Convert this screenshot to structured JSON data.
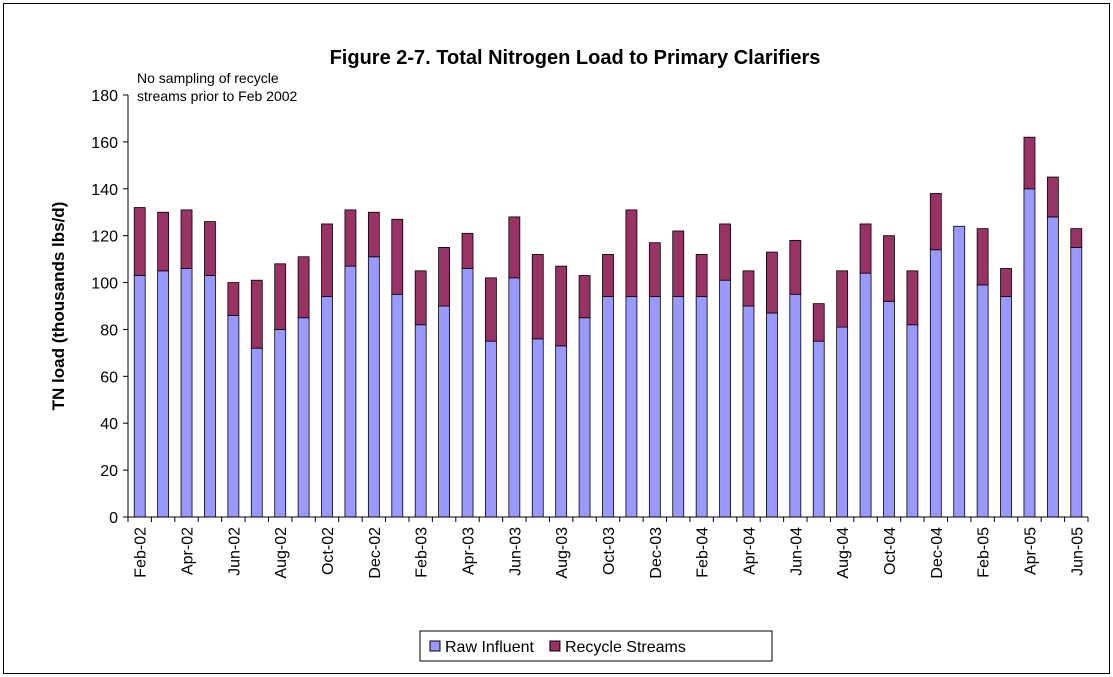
{
  "chart_data": {
    "type": "stacked-bar",
    "title": "Figure 2-7.  Total Nitrogen Load to Primary Clarifiers",
    "annotation": [
      "No sampling of recycle",
      "streams prior to Feb 2002"
    ],
    "y_label": "TN load (thousands lbs/d)",
    "categories": [
      "Feb-02",
      null,
      "Apr-02",
      null,
      "Jun-02",
      null,
      "Aug-02",
      null,
      "Oct-02",
      null,
      "Dec-02",
      null,
      "Feb-03",
      null,
      "Apr-03",
      null,
      "Jun-03",
      null,
      "Aug-03",
      null,
      "Oct-03",
      null,
      "Dec-03",
      null,
      "Feb-04",
      null,
      "Apr-04",
      null,
      "Jun-04",
      null,
      "Aug-04",
      null,
      "Oct-04",
      null,
      "Dec-04",
      null,
      "Feb-05",
      null,
      "Apr-05",
      null,
      "Jun-05"
    ],
    "series": [
      {
        "name": "Raw Influent",
        "color": "#9999ff",
        "values": [
          103,
          105,
          106,
          103,
          86,
          72,
          80,
          85,
          94,
          107,
          111,
          95,
          82,
          90,
          106,
          75,
          102,
          76,
          73,
          85,
          94,
          94,
          94,
          94,
          94,
          101,
          90,
          87,
          95,
          75,
          81,
          104,
          92,
          82,
          114,
          124,
          99,
          94,
          140,
          128,
          115
        ]
      },
      {
        "name": "Recycle Streams",
        "color": "#993366",
        "values": [
          29,
          25,
          25,
          23,
          14,
          29,
          28,
          26,
          31,
          24,
          19,
          32,
          23,
          25,
          15,
          27,
          26,
          36,
          34,
          18,
          18,
          37,
          23,
          28,
          18,
          24,
          15,
          26,
          23,
          16,
          24,
          21,
          28,
          23,
          24,
          0,
          24,
          12,
          22,
          17,
          8
        ]
      }
    ],
    "ylim": [
      0,
      180
    ],
    "yticks": [
      0,
      20,
      40,
      60,
      80,
      100,
      120,
      140,
      160,
      180
    ],
    "grid": false,
    "legend": "bottom"
  }
}
